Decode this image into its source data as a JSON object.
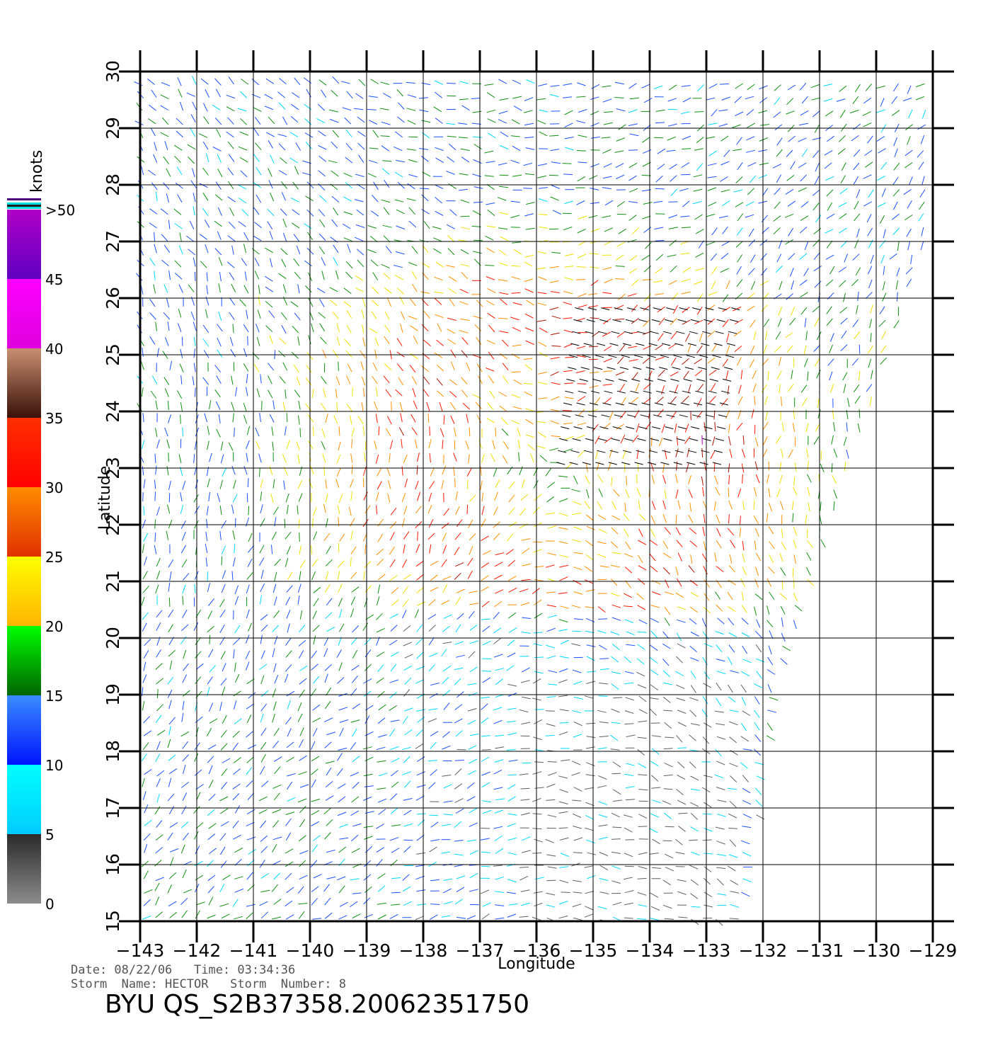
{
  "map": {
    "axes": {
      "xlabel": "Longitude",
      "ylabel": "Latitude",
      "lon_range": [
        -143,
        -129
      ],
      "lat_range": [
        15,
        30
      ],
      "lon_ticks": [
        "−143",
        "−142",
        "−141",
        "−140",
        "−139",
        "−138",
        "−137",
        "−136",
        "−135",
        "−134",
        "−133",
        "−132",
        "−131",
        "−130",
        "−129"
      ],
      "lat_ticks": [
        "15",
        "16",
        "17",
        "18",
        "19",
        "20",
        "21",
        "22",
        "23",
        "24",
        "25",
        "26",
        "27",
        "28",
        "29",
        "30"
      ]
    },
    "colorbar": {
      "title": "knots",
      "labels": [
        "0",
        "5",
        "10",
        "15",
        "20",
        "25",
        "30",
        "35",
        "40",
        "45",
        ">50"
      ],
      "bands": [
        {
          "from": 0,
          "to": 5,
          "top": "#2b2b2b",
          "bottom": "#8c8c8c"
        },
        {
          "from": 5,
          "to": 10,
          "top": "#00ffff",
          "bottom": "#00ccff"
        },
        {
          "from": 10,
          "to": 15,
          "top": "#3a8cff",
          "bottom": "#0014ff"
        },
        {
          "from": 15,
          "to": 20,
          "top": "#00ff00",
          "bottom": "#006400"
        },
        {
          "from": 20,
          "to": 25,
          "top": "#ffff00",
          "bottom": "#ffb400"
        },
        {
          "from": 25,
          "to": 30,
          "top": "#ff8c00",
          "bottom": "#e03000"
        },
        {
          "from": 30,
          "to": 35,
          "top": "#ff3000",
          "bottom": "#ff0000"
        },
        {
          "from": 35,
          "to": 40,
          "top": "#c89070",
          "bottom": "#3a1008"
        },
        {
          "from": 40,
          "to": 45,
          "top": "#ff00ff",
          "bottom": "#dd00dd"
        },
        {
          "from": 45,
          "to": 50,
          "top": "#b000c8",
          "bottom": "#6000c0"
        }
      ]
    },
    "info": {
      "date_line": "Date: 08/22/06   Time: 03:34:36",
      "storm_line": "Storm  Name: HECTOR   Storm  Number: 8",
      "banner": "BYU  QS_S2B37358.20062351750"
    }
  }
}
